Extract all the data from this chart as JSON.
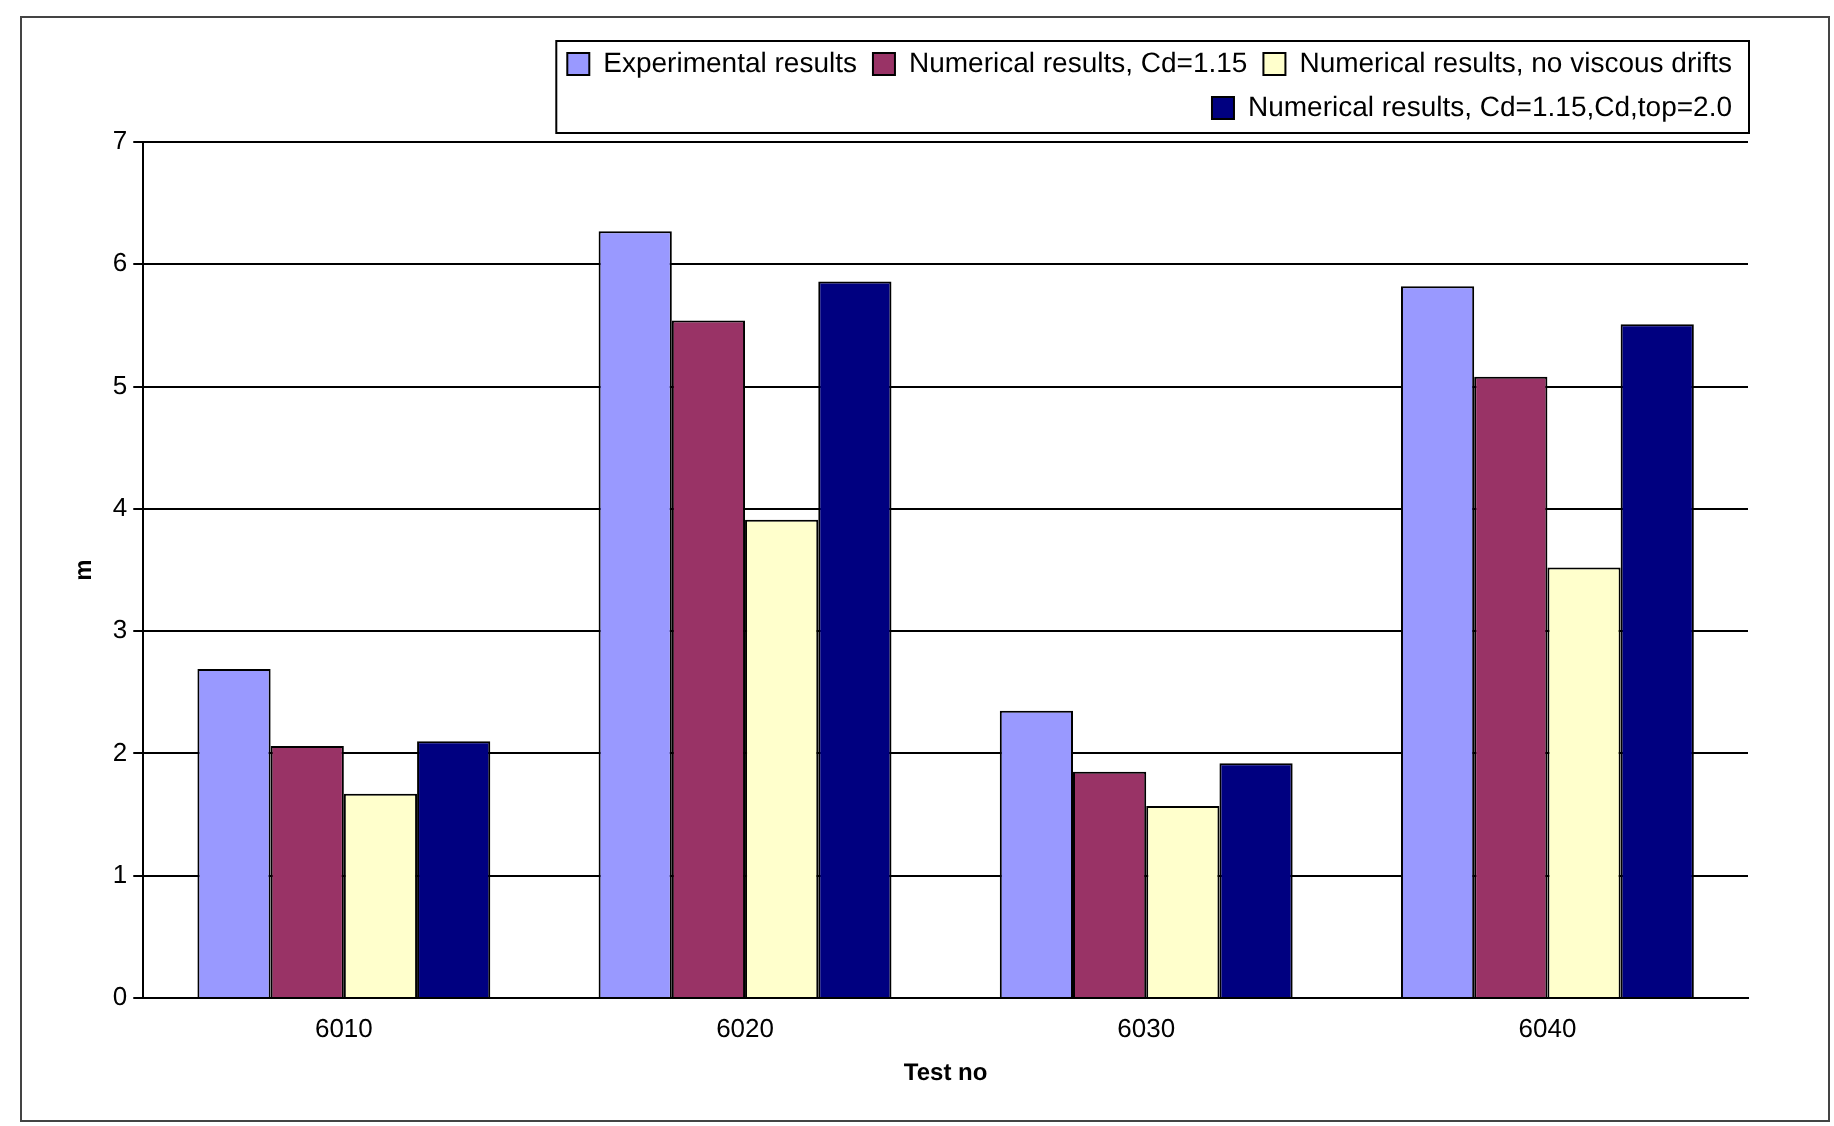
{
  "chart_data": {
    "type": "bar",
    "xlabel": "Test no",
    "ylabel": "m",
    "categories": [
      "6010",
      "6020",
      "6030",
      "6040"
    ],
    "series": [
      {
        "name": "Experimental results",
        "color": "#9999ff",
        "values": [
          2.69,
          6.27,
          2.35,
          5.82
        ]
      },
      {
        "name": "Numerical results, Cd=1.15",
        "color": "#993366",
        "values": [
          2.06,
          5.54,
          1.85,
          5.08
        ]
      },
      {
        "name": "Numerical results, no viscous drifts",
        "color": "#ffffcc",
        "values": [
          1.67,
          3.91,
          1.57,
          3.52
        ]
      },
      {
        "name": "Numerical results, Cd=1.15,Cd,top=2.0",
        "color": "#000080",
        "values": [
          2.1,
          5.86,
          1.92,
          5.51
        ]
      }
    ],
    "ylim": [
      0,
      7
    ],
    "yticks": [
      0,
      1,
      2,
      3,
      4,
      5,
      6,
      7
    ],
    "grid": "y",
    "legend": "top right"
  }
}
